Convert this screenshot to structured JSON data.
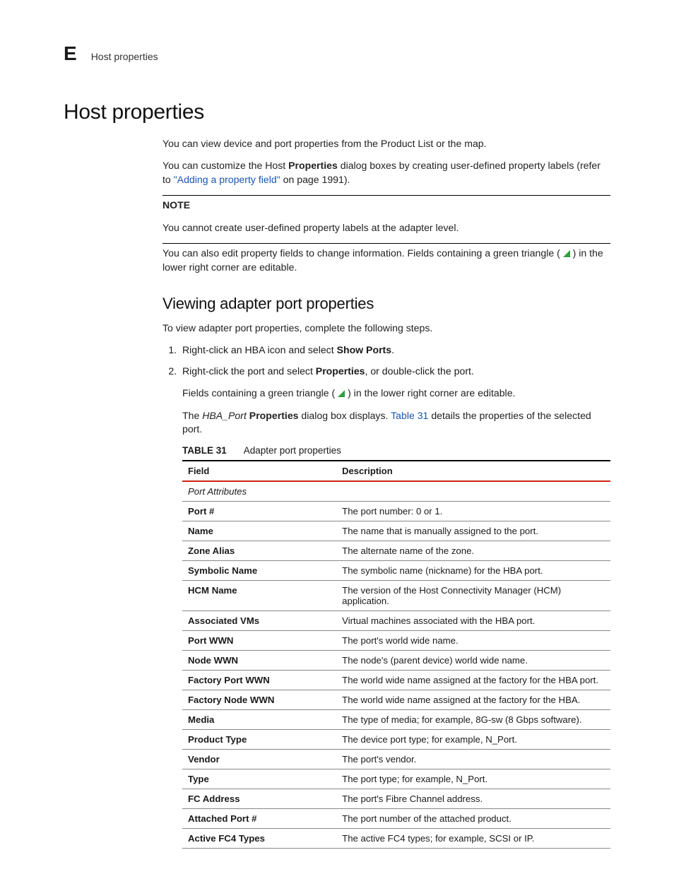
{
  "header": {
    "section_letter": "E",
    "section_name": "Host properties"
  },
  "title": "Host properties",
  "intro": {
    "p1": "You can view device and port properties from the Product List or the map.",
    "p2_a": "You can customize the Host ",
    "p2_bold": "Properties",
    "p2_b": " dialog boxes by creating user-defined property labels (refer to ",
    "p2_link": "\"Adding a property field\"",
    "p2_c": " on page 1991)."
  },
  "note": {
    "label": "NOTE",
    "text": "You cannot create user-defined property labels at the adapter level."
  },
  "after_note": {
    "a": "You can also edit property fields to change information. Fields containing a green triangle (",
    "b": ") in the lower right corner are editable."
  },
  "subhead": "Viewing adapter port properties",
  "sub_intro": "To view adapter port properties, complete the following steps.",
  "steps": {
    "s1_a": "Right-click an HBA icon and select ",
    "s1_bold": "Show Ports",
    "s1_b": ".",
    "s2_a": "Right-click the port and select ",
    "s2_bold": "Properties",
    "s2_b": ", or double-click the port."
  },
  "followups": {
    "f1_a": "Fields containing a green triangle (",
    "f1_b": ") in the lower right corner are editable.",
    "f2_a": "The ",
    "f2_i": "HBA_Port",
    "f2_b": " ",
    "f2_bold": "Properties",
    "f2_c": " dialog box displays. ",
    "f2_link": "Table 31",
    "f2_d": " details the properties of the selected port."
  },
  "table": {
    "caption_label": "TABLE 31",
    "caption_text": "Adapter port properties",
    "col_field": "Field",
    "col_desc": "Description",
    "section": "Port Attributes",
    "rows": [
      {
        "field": "Port #",
        "desc": "The port number: 0 or 1."
      },
      {
        "field": "Name",
        "desc": "The name that is manually assigned to the port."
      },
      {
        "field": "Zone Alias",
        "desc": "The alternate name of the zone."
      },
      {
        "field": "Symbolic Name",
        "desc": "The symbolic name (nickname) for the HBA port."
      },
      {
        "field": "HCM Name",
        "desc": "The version of the Host Connectivity Manager (HCM) application."
      },
      {
        "field": "Associated VMs",
        "desc": "Virtual machines associated with the HBA port."
      },
      {
        "field": "Port WWN",
        "desc": "The port's world wide name."
      },
      {
        "field": "Node WWN",
        "desc": "The node's (parent device) world wide name."
      },
      {
        "field": "Factory Port WWN",
        "desc": "The world wide name assigned at the factory for the HBA port."
      },
      {
        "field": "Factory Node WWN",
        "desc": "The world wide name assigned at the factory for the HBA."
      },
      {
        "field": "Media",
        "desc": "The type of media; for example, 8G-sw (8 Gbps software)."
      },
      {
        "field": "Product Type",
        "desc": "The device port type; for example, N_Port."
      },
      {
        "field": "Vendor",
        "desc": "The port's vendor."
      },
      {
        "field": "Type",
        "desc": "The port type; for example, N_Port."
      },
      {
        "field": "FC Address",
        "desc": "The port's Fibre Channel address."
      },
      {
        "field": "Attached Port #",
        "desc": "The port number of the attached product."
      },
      {
        "field": "Active FC4 Types",
        "desc": "The active FC4 types; for example, SCSI or IP."
      }
    ]
  },
  "colors": {
    "link": "#1b55b3",
    "triangle": "#2e9e3f",
    "rule_red": "#d02418"
  }
}
